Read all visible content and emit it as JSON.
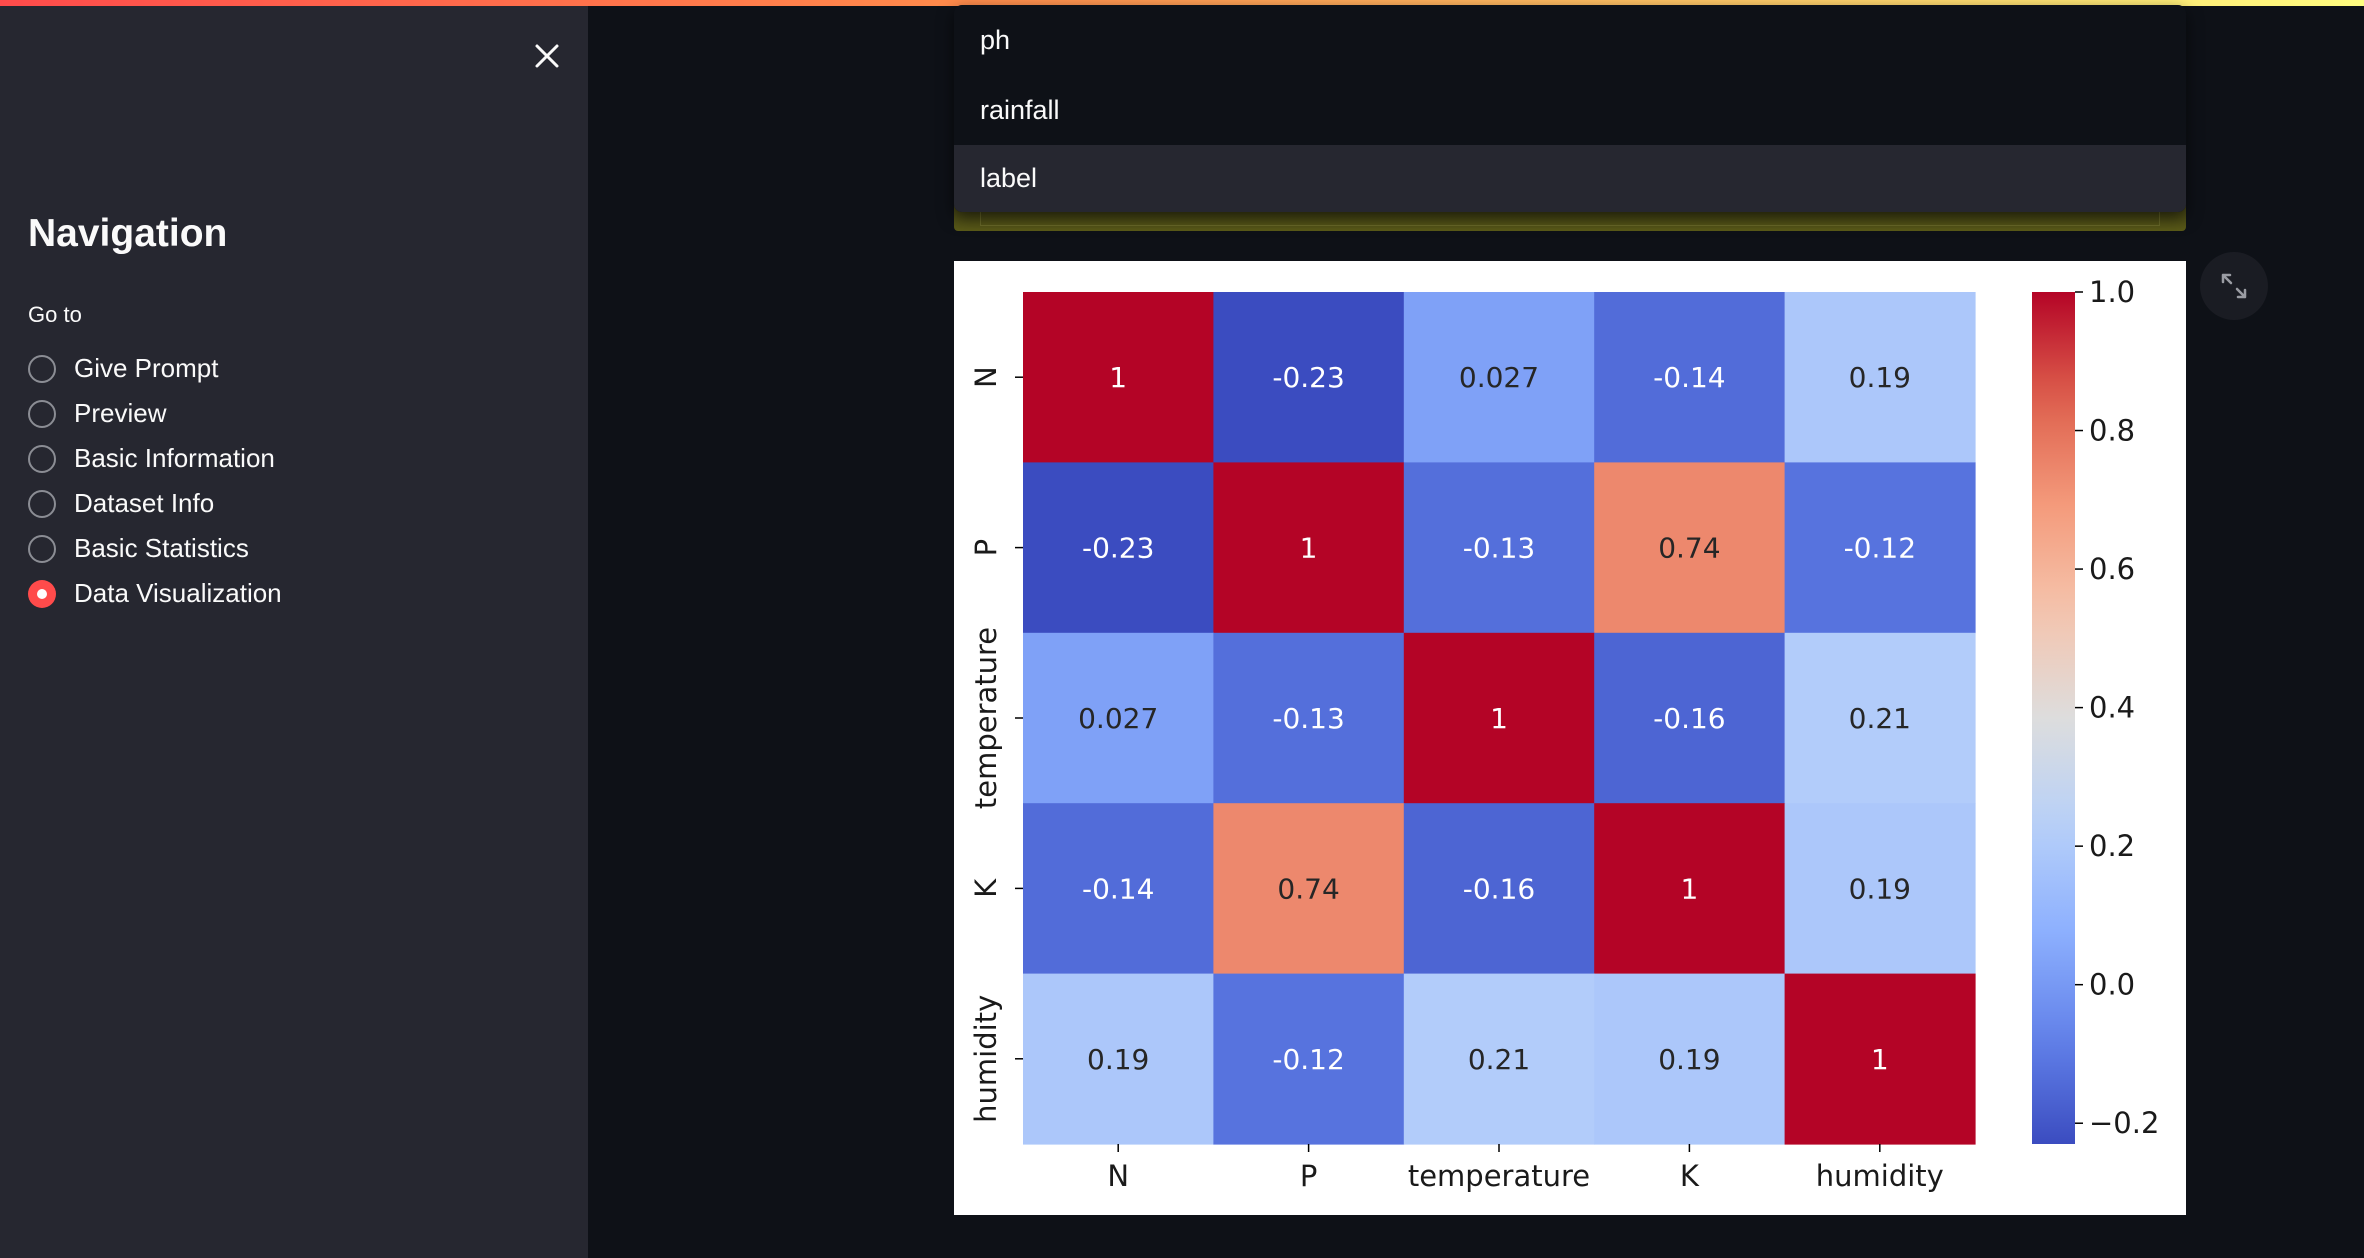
{
  "sidebar": {
    "title": "Navigation",
    "goto_label": "Go to",
    "items": [
      {
        "label": "Give Prompt",
        "selected": false
      },
      {
        "label": "Preview",
        "selected": false
      },
      {
        "label": "Basic Information",
        "selected": false
      },
      {
        "label": "Dataset Info",
        "selected": false
      },
      {
        "label": "Basic Statistics",
        "selected": false
      },
      {
        "label": "Data Visualization",
        "selected": true
      }
    ]
  },
  "dropdown": {
    "options": [
      "ph",
      "rainfall",
      "label"
    ],
    "highlighted_index": 2
  },
  "icons": {
    "close": "close-icon",
    "expand": "expand-icon"
  },
  "colors": {
    "accent": "#ff4b4b",
    "sidebar_bg": "#262730",
    "main_bg": "#0e1117"
  },
  "chart_data": {
    "type": "heatmap",
    "rows": [
      "N",
      "P",
      "temperature",
      "K",
      "humidity"
    ],
    "columns": [
      "N",
      "P",
      "temperature",
      "K",
      "humidity"
    ],
    "values": [
      [
        1,
        -0.23,
        0.027,
        -0.14,
        0.19
      ],
      [
        -0.23,
        1,
        -0.13,
        0.74,
        -0.12
      ],
      [
        0.027,
        -0.13,
        1,
        -0.16,
        0.21
      ],
      [
        -0.14,
        0.74,
        -0.16,
        1,
        0.19
      ],
      [
        0.19,
        -0.12,
        0.21,
        0.19,
        1
      ]
    ],
    "cell_labels": [
      [
        "1",
        "-0.23",
        "0.027",
        "-0.14",
        "0.19"
      ],
      [
        "-0.23",
        "1",
        "-0.13",
        "0.74",
        "-0.12"
      ],
      [
        "0.027",
        "-0.13",
        "1",
        "-0.16",
        "0.21"
      ],
      [
        "-0.14",
        "0.74",
        "-0.16",
        "1",
        "0.19"
      ],
      [
        "0.19",
        "-0.12",
        "0.21",
        "0.19",
        "1"
      ]
    ],
    "colorbar": {
      "min": -0.23,
      "max": 1.0,
      "ticks": [
        "1.0",
        "0.8",
        "0.6",
        "0.4",
        "0.2",
        "0.0",
        "−0.2"
      ],
      "tick_values": [
        1.0,
        0.8,
        0.6,
        0.4,
        0.2,
        0.0,
        -0.2
      ],
      "colormap": "coolwarm"
    }
  }
}
